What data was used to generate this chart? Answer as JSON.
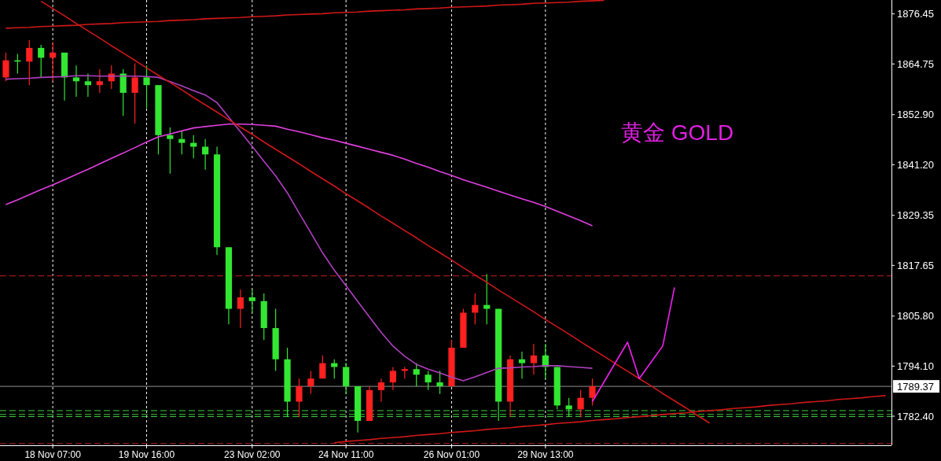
{
  "chart_data": {
    "type": "candlestick",
    "categories": [
      null,
      null,
      null,
      null,
      "18 Nov 07:00",
      null,
      null,
      null,
      null,
      null,
      null,
      null,
      "19 Nov 16:00",
      null,
      null,
      null,
      null,
      null,
      null,
      null,
      null,
      "23 Nov 02:00",
      null,
      null,
      null,
      null,
      null,
      null,
      null,
      "24 Nov 11:00",
      null,
      null,
      null,
      null,
      null,
      null,
      null,
      null,
      "26 Nov 01:00",
      null,
      null,
      null,
      null,
      null,
      null,
      null,
      "29 Nov 13:00",
      null,
      null,
      null,
      null,
      null,
      null,
      null,
      null,
      null,
      null,
      null,
      null,
      null,
      null,
      null,
      null,
      null,
      null,
      null,
      null,
      null,
      null,
      null,
      null,
      null,
      null,
      null,
      null,
      null
    ],
    "ohlc": [
      [
        1861.6,
        1867.4,
        1860.7,
        1865.6
      ],
      [
        1865.6,
        1867.1,
        1862.5,
        1865.3
      ],
      [
        1865.3,
        1870.3,
        1859.8,
        1868.5
      ],
      [
        1868.5,
        1869.2,
        1861.6,
        1866.2
      ],
      [
        1866.2,
        1869.8,
        1860.7,
        1867.4
      ],
      [
        1867.4,
        1867.4,
        1856.2,
        1861.6
      ],
      [
        1861.6,
        1864.4,
        1857.1,
        1860.7
      ],
      [
        1860.7,
        1862.5,
        1857.1,
        1859.8
      ],
      [
        1859.8,
        1863.5,
        1858.0,
        1860.7
      ],
      [
        1860.7,
        1864.4,
        1858.9,
        1862.5
      ],
      [
        1862.5,
        1863.5,
        1852.6,
        1858.0
      ],
      [
        1858.0,
        1864.9,
        1850.8,
        1861.6
      ],
      [
        1861.6,
        1864.4,
        1854.4,
        1859.8
      ],
      [
        1859.8,
        1859.8,
        1843.6,
        1848.1
      ],
      [
        1848.1,
        1849.9,
        1839.1,
        1847.2
      ],
      [
        1847.2,
        1849.0,
        1843.6,
        1846.3
      ],
      [
        1846.3,
        1848.1,
        1842.7,
        1845.4
      ],
      [
        1845.4,
        1847.2,
        1840.0,
        1843.6
      ],
      [
        1843.6,
        1845.4,
        1820.1,
        1821.9
      ],
      [
        1821.9,
        1821.9,
        1803.9,
        1807.5
      ],
      [
        1807.5,
        1812.0,
        1803.0,
        1810.2
      ],
      [
        1810.2,
        1812.0,
        1806.6,
        1809.3
      ],
      [
        1809.3,
        1811.1,
        1800.2,
        1803.0
      ],
      [
        1803.0,
        1807.5,
        1793.0,
        1795.7
      ],
      [
        1795.7,
        1798.4,
        1782.2,
        1785.8
      ],
      [
        1785.8,
        1791.2,
        1782.2,
        1789.4
      ],
      [
        1789.4,
        1793.0,
        1787.6,
        1791.2
      ],
      [
        1791.2,
        1796.6,
        1791.2,
        1794.8
      ],
      [
        1794.8,
        1795.7,
        1791.2,
        1793.9
      ],
      [
        1793.9,
        1794.8,
        1787.6,
        1789.4
      ],
      [
        1789.4,
        1789.4,
        1778.6,
        1781.3
      ],
      [
        1781.3,
        1789.4,
        1781.3,
        1788.5
      ],
      [
        1788.5,
        1791.2,
        1785.8,
        1790.3
      ],
      [
        1790.3,
        1793.9,
        1788.5,
        1793.0
      ],
      [
        1793.0,
        1793.9,
        1791.2,
        1793.4
      ],
      [
        1793.4,
        1794.8,
        1789.4,
        1792.1
      ],
      [
        1792.1,
        1793.0,
        1788.5,
        1790.3
      ],
      [
        1790.3,
        1793.0,
        1787.6,
        1789.4
      ],
      [
        1789.4,
        1800.2,
        1789.4,
        1798.4
      ],
      [
        1798.4,
        1807.5,
        1798.4,
        1806.6
      ],
      [
        1806.6,
        1811.1,
        1803.9,
        1808.4
      ],
      [
        1808.4,
        1815.6,
        1803.9,
        1807.5
      ],
      [
        1807.5,
        1807.5,
        1781.3,
        1785.8
      ],
      [
        1785.8,
        1796.6,
        1782.2,
        1795.7
      ],
      [
        1795.7,
        1797.5,
        1791.2,
        1794.8
      ],
      [
        1794.8,
        1799.3,
        1792.1,
        1796.6
      ],
      [
        1796.6,
        1799.3,
        1791.2,
        1793.9
      ],
      [
        1793.9,
        1793.9,
        1784.0,
        1784.9
      ],
      [
        1784.9,
        1786.7,
        1782.2,
        1784.0
      ],
      [
        1784.0,
        1788.5,
        1782.2,
        1786.7
      ],
      [
        1786.7,
        1791.2,
        1784.9,
        1789.4
      ],
      null,
      null,
      null,
      null,
      null,
      null,
      null,
      null,
      null,
      null,
      null,
      null,
      null,
      null,
      null,
      null,
      null,
      null,
      null,
      null,
      null,
      null,
      null,
      null,
      null
    ],
    "colors": [
      "#ff2020",
      "#32e632",
      "#ff2020",
      "#32e632",
      "#ff2020",
      "#32e632",
      "#32e632",
      "#32e632",
      "#ff2020",
      "#ff2020",
      "#32e632",
      "#ff2020",
      "#32e632",
      "#32e632",
      "#32e632",
      "#32e632",
      "#32e632",
      "#32e632",
      "#32e632",
      "#32e632",
      "#ff2020",
      "#32e632",
      "#32e632",
      "#32e632",
      "#32e632",
      "#ff2020",
      "#ff2020",
      "#ff2020",
      "#32e632",
      "#32e632",
      "#32e632",
      "#ff2020",
      "#ff2020",
      "#ff2020",
      "#ff2020",
      "#32e632",
      "#32e632",
      "#32e632",
      "#ff2020",
      "#ff2020",
      "#ff2020",
      "#32e632",
      "#32e632",
      "#ff2020",
      "#32e632",
      "#ff2020",
      "#32e632",
      "#32e632",
      "#32e632",
      "#ff2020",
      "#ff2020",
      null,
      null,
      null,
      null,
      null,
      null,
      null,
      null,
      null,
      null,
      null,
      null,
      null,
      null,
      null,
      null,
      null,
      null,
      null,
      null,
      null,
      null,
      null,
      null,
      null
    ],
    "series": [
      {
        "type": "line",
        "color": "#e040e0",
        "values": [
          1831.9,
          1833.0,
          1834.2,
          1835.4,
          1836.5,
          1837.7,
          1838.9,
          1840.1,
          1841.4,
          1842.7,
          1843.9,
          1845.2,
          1846.5,
          1847.7,
          1848.4,
          1849.1,
          1849.8,
          1850.1,
          1850.4,
          1850.7,
          1850.7,
          1850.6,
          1850.4,
          1850.2,
          1849.5,
          1848.9,
          1848.2,
          1847.5,
          1846.9,
          1846.2,
          1845.5,
          1844.8,
          1844.1,
          1843.4,
          1842.5,
          1841.5,
          1840.6,
          1839.6,
          1838.7,
          1837.7,
          1836.8,
          1835.9,
          1835.0,
          1834.1,
          1833.2,
          1832.4,
          1831.4,
          1830.3,
          1829.2,
          1828.1,
          1826.9,
          null,
          null,
          null,
          null,
          null,
          null,
          null,
          null,
          null,
          null,
          null,
          null,
          null,
          null,
          null,
          null,
          null,
          null,
          null,
          null,
          null,
          null,
          null,
          null,
          null
        ]
      },
      {
        "type": "line",
        "color": "#b040c0",
        "values": [
          1861.2,
          1861.3,
          1861.4,
          1861.6,
          1861.7,
          1861.8,
          1862.0,
          1862.0,
          1861.9,
          1861.9,
          1861.9,
          1861.9,
          1861.8,
          1861.6,
          1860.6,
          1859.6,
          1858.5,
          1857.5,
          1855.7,
          1852.3,
          1848.9,
          1845.5,
          1842.0,
          1838.6,
          1834.6,
          1829.9,
          1825.3,
          1820.6,
          1816.5,
          1812.9,
          1809.2,
          1805.6,
          1802.0,
          1798.8,
          1796.4,
          1794.5,
          1793.4,
          1792.5,
          1791.5,
          1790.7,
          1791.6,
          1792.6,
          1793.6,
          1793.7,
          1793.9,
          1794.0,
          1794.2,
          1794.2,
          1794.0,
          1793.8,
          1793.6,
          null,
          null,
          null,
          null,
          null,
          null,
          null,
          null,
          null,
          null,
          null,
          null,
          null,
          null,
          null,
          null,
          null,
          null,
          null,
          null,
          null,
          null,
          null,
          null,
          null
        ]
      },
      {
        "type": "line",
        "color": "#d01818",
        "values": [
          null,
          null,
          null,
          1879.4,
          1877.7,
          1876.0,
          1874.2,
          1872.5,
          1870.8,
          1869.0,
          1867.3,
          1865.6,
          1863.8,
          1862.1,
          1860.4,
          1858.7,
          1856.9,
          1855.2,
          1853.5,
          1851.7,
          1850.0,
          1848.3,
          1846.5,
          1844.8,
          1843.1,
          1841.4,
          1839.6,
          1837.9,
          1836.2,
          1834.4,
          1832.7,
          1831.0,
          1829.2,
          1827.5,
          1825.8,
          1824.1,
          1822.3,
          1820.6,
          1818.9,
          1817.1,
          1815.4,
          1813.7,
          1811.9,
          1810.2,
          1808.5,
          1806.8,
          1805.0,
          1803.3,
          1801.6,
          1799.8,
          1798.1,
          1796.4,
          1794.6,
          1792.9,
          1791.2,
          1789.5,
          1787.7,
          1786.0,
          1784.3,
          1782.5,
          1780.8,
          null,
          null,
          null,
          null,
          null,
          null,
          null,
          null,
          null,
          null,
          null,
          null,
          null,
          null,
          null
        ]
      },
      {
        "type": "line",
        "color": "#d01818",
        "values": [
          1873.1,
          1873.2,
          1873.3,
          1873.5,
          1873.6,
          1873.7,
          1873.8,
          1874.0,
          1874.1,
          1874.2,
          1874.4,
          1874.5,
          1874.6,
          1874.7,
          1874.9,
          1875.0,
          1875.1,
          1875.3,
          1875.4,
          1875.5,
          1875.6,
          1875.8,
          1875.9,
          1876.0,
          1876.2,
          1876.3,
          1876.4,
          1876.5,
          1876.7,
          1876.8,
          1876.9,
          1877.1,
          1877.2,
          1877.3,
          1877.4,
          1877.6,
          1877.7,
          1877.8,
          1878.0,
          1878.1,
          1878.2,
          1878.3,
          1878.5,
          1878.6,
          1878.7,
          1878.9,
          1879.0,
          1879.1,
          1879.2,
          1879.4,
          1879.5,
          1879.6,
          null,
          null,
          null,
          null,
          null,
          null,
          null,
          null,
          null,
          null,
          null,
          null,
          null,
          null,
          null,
          null,
          null,
          null,
          null,
          null,
          null,
          null,
          null,
          null
        ]
      },
      {
        "type": "line",
        "color": "#d01818",
        "values": [
          null,
          null,
          null,
          null,
          null,
          null,
          null,
          null,
          null,
          null,
          null,
          null,
          null,
          null,
          null,
          null,
          null,
          null,
          null,
          null,
          null,
          null,
          null,
          null,
          null,
          null,
          null,
          null,
          1776.2,
          1776.5,
          1776.7,
          1776.9,
          1777.2,
          1777.4,
          1777.6,
          1777.9,
          1778.1,
          1778.3,
          1778.6,
          1778.8,
          1779.0,
          1779.3,
          1779.5,
          1779.7,
          1780.0,
          1780.2,
          1780.4,
          1780.7,
          1780.9,
          1781.1,
          1781.4,
          1781.6,
          1781.8,
          1782.1,
          1782.3,
          1782.5,
          1782.8,
          1783.0,
          1783.2,
          1783.5,
          1783.7,
          1783.9,
          1784.2,
          1784.4,
          1784.6,
          1784.9,
          1785.1,
          1785.3,
          1785.6,
          1785.8,
          1786.0,
          1786.3,
          1786.5,
          1786.7,
          1787.0,
          1787.2
        ]
      },
      {
        "type": "line",
        "color": "#ee22ee",
        "values": [
          null,
          null,
          null,
          null,
          null,
          null,
          null,
          null,
          null,
          null,
          null,
          null,
          null,
          null,
          null,
          null,
          null,
          null,
          null,
          null,
          null,
          null,
          null,
          null,
          null,
          null,
          null,
          null,
          null,
          null,
          null,
          null,
          null,
          null,
          null,
          null,
          null,
          null,
          null,
          null,
          null,
          null,
          null,
          null,
          null,
          null,
          null,
          null,
          null,
          null,
          1785.8,
          1790.4,
          1795.1,
          1799.7,
          1791.2,
          1795.0,
          1798.8,
          1812.5,
          null,
          null,
          null,
          null,
          null,
          null,
          null,
          null,
          null,
          null,
          null,
          null,
          null,
          null,
          null,
          null,
          null,
          null
        ]
      }
    ],
    "ylim": [
      1775.6,
      1879.7
    ],
    "yticks": [
      {
        "value": 1876.45,
        "label": "1876.45"
      },
      {
        "value": 1864.75,
        "label": "1864.75"
      },
      {
        "value": 1852.9,
        "label": "1852.90"
      },
      {
        "value": 1841.2,
        "label": "1841.20"
      },
      {
        "value": 1829.35,
        "label": "1829.35"
      },
      {
        "value": 1817.65,
        "label": "1817.65"
      },
      {
        "value": 1805.8,
        "label": "1805.80"
      },
      {
        "value": 1794.1,
        "label": "1794.10"
      },
      {
        "value": 1782.4,
        "label": "1782.40"
      }
    ],
    "grid": "x",
    "ref_lines": [
      {
        "axis": "y",
        "value": 1815.2,
        "color": "#c02020",
        "line_style": "dashed"
      },
      {
        "axis": "y",
        "value": 1776.0,
        "color": "#c02020",
        "line_style": "dashed"
      },
      {
        "axis": "y",
        "value": 1783.7,
        "color": "#40d040",
        "line_style": "dashed"
      },
      {
        "axis": "y",
        "value": 1782.8,
        "color": "#40d040",
        "line_style": "dashed"
      },
      {
        "axis": "y",
        "value": 1782.3,
        "color": "#40d040",
        "line_style": "dashed"
      },
      {
        "axis": "y",
        "value": 1789.37,
        "label": "1789.37",
        "color": "#909090",
        "line_style": "solid"
      }
    ],
    "annotations": [
      "黄金 GOLD"
    ]
  }
}
